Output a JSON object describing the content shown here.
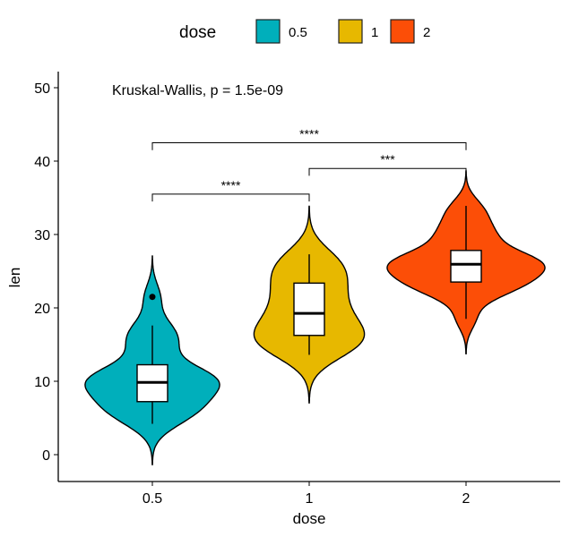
{
  "chart_data": {
    "type": "violin",
    "xlabel": "dose",
    "ylabel": "len",
    "ylim": [
      -3.5,
      53
    ],
    "yticks": [
      0,
      10,
      20,
      30,
      40,
      50
    ],
    "categories": [
      "0.5",
      "1",
      "2"
    ],
    "colors": [
      "#00AFBB",
      "#E7B800",
      "#FC4E07"
    ],
    "legend": {
      "title": "dose",
      "position": "top",
      "labels": [
        "0.5",
        "1",
        "2"
      ]
    },
    "annotation": "Kruskal-Wallis, p = 1.5e-09",
    "groups": [
      {
        "dose": "0.5",
        "values": [
          4.2,
          11.5,
          7.3,
          5.8,
          6.4,
          10,
          11.2,
          11.2,
          5.2,
          7,
          15.2,
          21.5,
          17.6,
          9.7,
          14.5,
          10,
          8.2,
          9.4,
          16.5,
          9.7
        ]
      },
      {
        "dose": "1",
        "values": [
          16.5,
          16.5,
          15.2,
          17.3,
          22.5,
          17.3,
          13.6,
          14.5,
          18.8,
          15.5,
          19.7,
          23.3,
          23.6,
          26.4,
          20,
          25.2,
          25.8,
          21.2,
          14.5,
          27.3
        ]
      },
      {
        "dose": "2",
        "values": [
          23.6,
          18.5,
          33.9,
          25.5,
          26.4,
          32.5,
          26.7,
          21.5,
          23.3,
          29.5,
          25.5,
          26.4,
          22.4,
          24.5,
          24.8,
          30.9,
          26.4,
          27.3,
          29.4,
          23
        ]
      }
    ],
    "comparisons": [
      {
        "from": "0.5",
        "to": "1",
        "y": 35.5,
        "label": "****"
      },
      {
        "from": "1",
        "to": "2",
        "y": 39,
        "label": "***"
      },
      {
        "from": "0.5",
        "to": "2",
        "y": 42.5,
        "label": "****"
      }
    ]
  }
}
